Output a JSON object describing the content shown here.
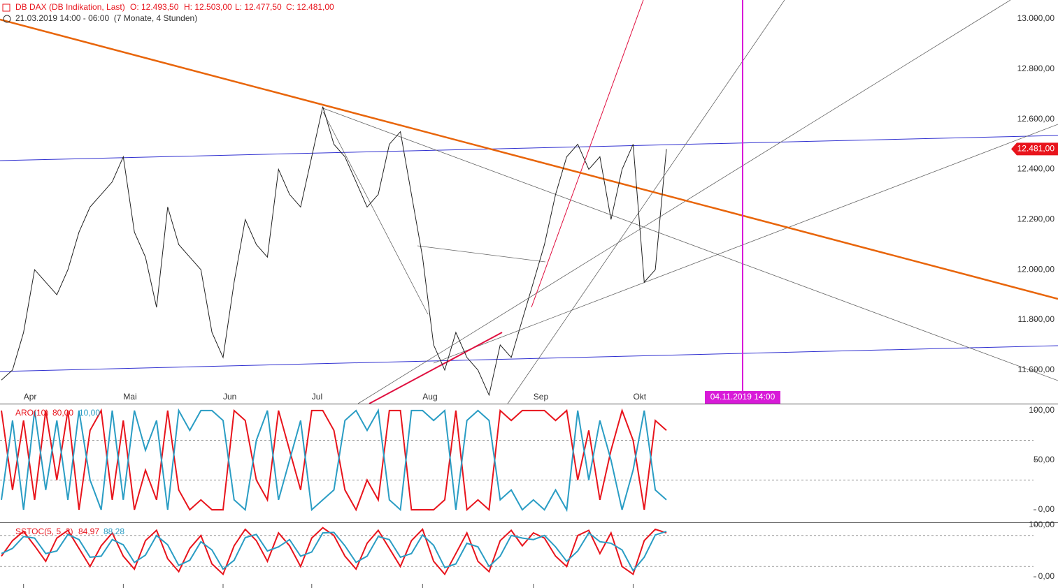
{
  "chart_data": [
    {
      "type": "line",
      "title": "DB DAX (DB Indikation, Last)",
      "ohlc": [
        "O: 12.493,50",
        "H: 12.503,00",
        "L: 12.477,50",
        "C: 12.481,00"
      ],
      "subtitle": "21.03.2019 14:00 - 06:00  (7 Monate, 4 Stunden)",
      "categories": [
        null,
        null,
        "Apr",
        null,
        null,
        null,
        null,
        null,
        null,
        null,
        null,
        "Mai",
        null,
        null,
        null,
        null,
        null,
        null,
        null,
        null,
        "Jun",
        null,
        null,
        null,
        null,
        null,
        null,
        null,
        "Jul",
        null,
        null,
        null,
        null,
        null,
        null,
        null,
        null,
        null,
        "Aug",
        null,
        null,
        null,
        null,
        null,
        null,
        null,
        null,
        null,
        "Sep",
        null,
        null,
        null,
        null,
        null,
        null,
        null,
        null,
        "Okt",
        null,
        null,
        null
      ],
      "values": [
        11560,
        11600,
        11750,
        12000,
        11950,
        11900,
        12000,
        12150,
        12250,
        12300,
        12350,
        12450,
        12150,
        12050,
        11850,
        12250,
        12100,
        12050,
        12000,
        11750,
        11650,
        11950,
        12200,
        12100,
        12050,
        12400,
        12300,
        12250,
        12450,
        12650,
        12500,
        12450,
        12350,
        12250,
        12300,
        12500,
        12550,
        12300,
        12050,
        11700,
        11600,
        11750,
        11650,
        11600,
        11500,
        11700,
        11650,
        11800,
        11950,
        12100,
        12300,
        12450,
        12500,
        12400,
        12450,
        12200,
        12400,
        12500,
        11950,
        12000,
        12481
      ],
      "color": "#222222",
      "current": {
        "value": 12481,
        "label": "12.481,00"
      },
      "annotation": "04.11.2019 14:00",
      "ylim": [
        11466,
        13075
      ],
      "yticks": [
        {
          "value": 11600,
          "label": "11.600,00"
        },
        {
          "value": 11800,
          "label": "11.800,00"
        },
        {
          "value": 12000,
          "label": "12.000,00"
        },
        {
          "value": 12200,
          "label": "12.200,00"
        },
        {
          "value": 12400,
          "label": "12.400,00"
        },
        {
          "value": 12600,
          "label": "12.600,00"
        },
        {
          "value": 12800,
          "label": "12.800,00"
        },
        {
          "value": 13000,
          "label": "13.000,00"
        }
      ]
    },
    {
      "type": "line",
      "title": "ARO(10)",
      "series": [
        {
          "color": "#e8141c",
          "current": {
            "value": 80,
            "label": "80,00"
          },
          "values": [
            100,
            20,
            90,
            10,
            100,
            30,
            100,
            0,
            80,
            100,
            10,
            90,
            0,
            40,
            10,
            100,
            20,
            0,
            10,
            0,
            0,
            100,
            90,
            30,
            10,
            100,
            60,
            20,
            100,
            100,
            80,
            20,
            0,
            30,
            10,
            100,
            100,
            0,
            0,
            0,
            10,
            100,
            0,
            10,
            0,
            100,
            90,
            100,
            100,
            100,
            90,
            100,
            30,
            80,
            10,
            60,
            100,
            70,
            0,
            90,
            80
          ]
        },
        {
          "color": "#2a9dc4",
          "current": {
            "value": 10,
            "label": "10,00"
          },
          "values": [
            10,
            90,
            0,
            100,
            20,
            90,
            10,
            100,
            30,
            0,
            100,
            10,
            100,
            60,
            90,
            0,
            100,
            80,
            100,
            100,
            90,
            10,
            0,
            70,
            100,
            10,
            50,
            90,
            0,
            10,
            20,
            90,
            100,
            80,
            100,
            10,
            0,
            100,
            100,
            90,
            100,
            0,
            90,
            100,
            90,
            10,
            20,
            0,
            10,
            0,
            20,
            0,
            100,
            30,
            90,
            50,
            0,
            40,
            100,
            20,
            10
          ]
        }
      ],
      "levels": [
        30,
        70
      ],
      "ylim": [
        -12.7,
        107
      ],
      "yticks": [
        {
          "value": 0,
          "label": "0,00"
        },
        {
          "value": 50,
          "label": "50,00"
        },
        {
          "value": 100,
          "label": "100,00"
        }
      ]
    },
    {
      "type": "line",
      "title": "SSTOC(5, 5, 3)",
      "series": [
        {
          "color": "#e8141c",
          "current": {
            "value": 84.97,
            "label": "84,97"
          },
          "values": [
            40,
            70,
            88,
            60,
            30,
            75,
            90,
            55,
            20,
            60,
            85,
            40,
            15,
            70,
            90,
            35,
            10,
            55,
            80,
            25,
            5,
            60,
            92,
            70,
            30,
            85,
            60,
            20,
            75,
            95,
            80,
            40,
            15,
            65,
            90,
            55,
            20,
            70,
            92,
            30,
            5,
            45,
            85,
            30,
            10,
            70,
            90,
            60,
            85,
            75,
            40,
            20,
            80,
            90,
            45,
            85,
            20,
            5,
            70,
            92,
            85
          ]
        },
        {
          "color": "#2a9dc4",
          "current": {
            "value": 88.28,
            "label": "88,28"
          },
          "values": [
            45,
            55,
            78,
            75,
            45,
            50,
            82,
            72,
            38,
            40,
            72,
            62,
            28,
            42,
            80,
            62,
            22,
            32,
            68,
            52,
            15,
            32,
            76,
            82,
            50,
            58,
            72,
            40,
            48,
            85,
            86,
            60,
            28,
            40,
            78,
            72,
            38,
            45,
            81,
            61,
            18,
            25,
            65,
            58,
            20,
            40,
            80,
            75,
            72,
            80,
            58,
            30,
            50,
            85,
            68,
            65,
            52,
            12,
            38,
            81,
            88
          ]
        }
      ],
      "levels": [
        20,
        80
      ],
      "ylim": [
        -21.6,
        105.4
      ],
      "yticks": [
        {
          "value": 0,
          "label": "0,00"
        },
        {
          "value": 100,
          "label": "100,00"
        }
      ]
    }
  ]
}
